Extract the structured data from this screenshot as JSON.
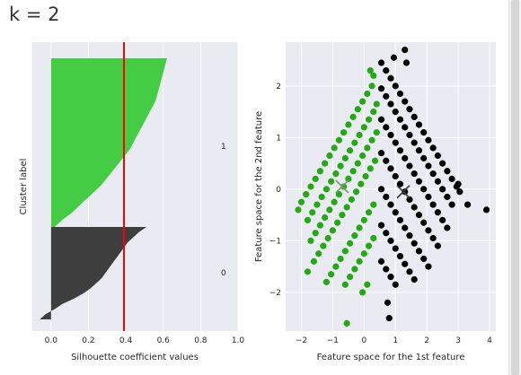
{
  "cell_output": {
    "heading": "k = 2"
  },
  "colors": {
    "panel_bg": "#eaeaf2",
    "cluster_0": "#3e3e3e",
    "cluster_1": "#44cc44",
    "scatter_0": "#000000",
    "scatter_1": "#22aa11",
    "avg_line": "#ff0000",
    "grid": "#ffffff"
  },
  "chart_data": [
    {
      "type": "area",
      "xlabel": "Silhouette coefficient values",
      "ylabel": "Cluster label",
      "xlim": [
        -0.1,
        1.0
      ],
      "xticks": [
        0.0,
        0.2,
        0.4,
        0.6,
        0.8,
        1.0
      ],
      "xtick_labels": [
        "0.0",
        "0.2",
        "0.4",
        "0.6",
        "0.8",
        "1.0"
      ],
      "average_silhouette": 0.39,
      "grid": true,
      "clusters": [
        {
          "label": "0",
          "color": "#3e3e3e",
          "silhouette_profile": [
            0.51,
            0.47,
            0.44,
            0.41,
            0.39,
            0.37,
            0.35,
            0.33,
            0.31,
            0.29,
            0.27,
            0.24,
            0.21,
            0.17,
            0.12,
            0.06,
            0.02,
            -0.03,
            -0.06
          ]
        },
        {
          "label": "1",
          "color": "#44cc44",
          "silhouette_profile": [
            0.62,
            0.61,
            0.6,
            0.59,
            0.58,
            0.57,
            0.56,
            0.54,
            0.52,
            0.5,
            0.48,
            0.46,
            0.44,
            0.42,
            0.39,
            0.36,
            0.33,
            0.3,
            0.27,
            0.23,
            0.19,
            0.15,
            0.11,
            0.06,
            0.02
          ]
        }
      ]
    },
    {
      "type": "scatter",
      "xlabel": "Feature space for the 1st feature",
      "ylabel": "Feature space for the 2nd feature",
      "xlim": [
        -2.5,
        4.2
      ],
      "ylim": [
        -2.75,
        2.85
      ],
      "xticks": [
        -2,
        -1,
        0,
        1,
        2,
        3,
        4
      ],
      "xtick_labels": [
        "−2",
        "−1",
        "0",
        "1",
        "2",
        "3",
        "4"
      ],
      "yticks": [
        -2,
        -1,
        0,
        1,
        2
      ],
      "ytick_labels": [
        "−2",
        "−1",
        "0",
        "1",
        "2"
      ],
      "grid": true,
      "centers": [
        {
          "x": -0.7,
          "y": 0.05
        },
        {
          "x": 1.25,
          "y": -0.05
        }
      ],
      "series": [
        {
          "cluster": "1",
          "color": "#22aa11",
          "points": [
            [
              -2.1,
              -0.4
            ],
            [
              -2.0,
              -0.25
            ],
            [
              -1.85,
              -0.1
            ],
            [
              -1.7,
              0.05
            ],
            [
              -1.55,
              0.2
            ],
            [
              -1.4,
              0.35
            ],
            [
              -1.25,
              0.5
            ],
            [
              -1.1,
              0.65
            ],
            [
              -0.95,
              0.8
            ],
            [
              -0.8,
              0.95
            ],
            [
              -0.65,
              1.1
            ],
            [
              -0.5,
              1.25
            ],
            [
              -0.35,
              1.4
            ],
            [
              -0.2,
              1.55
            ],
            [
              -0.05,
              1.7
            ],
            [
              0.1,
              1.85
            ],
            [
              0.25,
              2.0
            ],
            [
              -1.8,
              -0.6
            ],
            [
              -1.65,
              -0.45
            ],
            [
              -1.5,
              -0.3
            ],
            [
              -1.35,
              -0.15
            ],
            [
              -1.2,
              0.0
            ],
            [
              -1.05,
              0.15
            ],
            [
              -0.9,
              0.3
            ],
            [
              -0.75,
              0.45
            ],
            [
              -0.6,
              0.6
            ],
            [
              -0.45,
              0.75
            ],
            [
              -0.3,
              0.9
            ],
            [
              -0.15,
              1.05
            ],
            [
              0.0,
              1.2
            ],
            [
              0.15,
              1.35
            ],
            [
              0.3,
              1.5
            ],
            [
              0.4,
              1.65
            ],
            [
              -1.7,
              -1.0
            ],
            [
              -1.55,
              -0.85
            ],
            [
              -1.4,
              -0.7
            ],
            [
              -1.25,
              -0.55
            ],
            [
              -1.1,
              -0.4
            ],
            [
              -0.95,
              -0.25
            ],
            [
              -0.8,
              -0.1
            ],
            [
              -0.65,
              0.05
            ],
            [
              -0.5,
              0.2
            ],
            [
              -0.35,
              0.35
            ],
            [
              -0.2,
              0.5
            ],
            [
              -0.05,
              0.65
            ],
            [
              0.1,
              0.8
            ],
            [
              0.25,
              0.95
            ],
            [
              0.4,
              1.1
            ],
            [
              -1.8,
              -1.6
            ],
            [
              -1.6,
              -1.4
            ],
            [
              -1.45,
              -1.25
            ],
            [
              -1.3,
              -1.1
            ],
            [
              -1.15,
              -0.95
            ],
            [
              -1.0,
              -0.8
            ],
            [
              -0.85,
              -0.65
            ],
            [
              -0.7,
              -0.5
            ],
            [
              -0.55,
              -0.35
            ],
            [
              -0.4,
              -0.2
            ],
            [
              -0.25,
              -0.05
            ],
            [
              -0.1,
              0.1
            ],
            [
              0.05,
              0.25
            ],
            [
              0.2,
              0.4
            ],
            [
              0.35,
              0.55
            ],
            [
              -1.2,
              -1.8
            ],
            [
              -1.05,
              -1.65
            ],
            [
              -0.9,
              -1.5
            ],
            [
              -0.75,
              -1.35
            ],
            [
              -0.6,
              -1.2
            ],
            [
              -0.45,
              -1.05
            ],
            [
              -0.3,
              -0.9
            ],
            [
              -0.15,
              -0.75
            ],
            [
              0.0,
              -0.6
            ],
            [
              0.15,
              -0.45
            ],
            [
              0.3,
              -0.3
            ],
            [
              -0.6,
              -1.85
            ],
            [
              -0.45,
              -1.7
            ],
            [
              -0.3,
              -1.55
            ],
            [
              -0.15,
              -1.4
            ],
            [
              0.0,
              -1.25
            ],
            [
              0.15,
              -1.1
            ],
            [
              0.3,
              -0.95
            ],
            [
              -0.05,
              -2.0
            ],
            [
              0.1,
              -1.85
            ],
            [
              -0.55,
              -2.6
            ],
            [
              0.3,
              2.2
            ],
            [
              0.2,
              2.3
            ]
          ]
        },
        {
          "cluster": "0",
          "color": "#000000",
          "points": [
            [
              0.55,
              2.45
            ],
            [
              0.7,
              2.3
            ],
            [
              0.85,
              2.15
            ],
            [
              1.0,
              2.0
            ],
            [
              1.15,
              1.85
            ],
            [
              1.3,
              1.7
            ],
            [
              1.45,
              1.55
            ],
            [
              1.6,
              1.4
            ],
            [
              1.75,
              1.25
            ],
            [
              1.9,
              1.1
            ],
            [
              2.05,
              0.95
            ],
            [
              2.2,
              0.8
            ],
            [
              2.35,
              0.65
            ],
            [
              2.5,
              0.5
            ],
            [
              2.65,
              0.35
            ],
            [
              2.8,
              0.2
            ],
            [
              2.95,
              0.05
            ],
            [
              0.55,
              1.95
            ],
            [
              0.7,
              1.8
            ],
            [
              0.85,
              1.65
            ],
            [
              1.0,
              1.5
            ],
            [
              1.15,
              1.35
            ],
            [
              1.3,
              1.2
            ],
            [
              1.45,
              1.05
            ],
            [
              1.6,
              0.9
            ],
            [
              1.75,
              0.75
            ],
            [
              1.9,
              0.6
            ],
            [
              2.05,
              0.45
            ],
            [
              2.2,
              0.3
            ],
            [
              2.35,
              0.15
            ],
            [
              2.5,
              0.0
            ],
            [
              2.65,
              -0.15
            ],
            [
              2.8,
              -0.3
            ],
            [
              0.55,
              1.35
            ],
            [
              0.7,
              1.2
            ],
            [
              0.85,
              1.05
            ],
            [
              1.0,
              0.9
            ],
            [
              1.15,
              0.75
            ],
            [
              1.3,
              0.6
            ],
            [
              1.45,
              0.45
            ],
            [
              1.6,
              0.3
            ],
            [
              1.75,
              0.15
            ],
            [
              1.9,
              0.0
            ],
            [
              2.05,
              -0.15
            ],
            [
              2.2,
              -0.3
            ],
            [
              2.35,
              -0.45
            ],
            [
              2.5,
              -0.6
            ],
            [
              2.65,
              -0.75
            ],
            [
              0.55,
              0.7
            ],
            [
              0.7,
              0.55
            ],
            [
              0.85,
              0.4
            ],
            [
              1.0,
              0.25
            ],
            [
              1.15,
              0.1
            ],
            [
              1.3,
              -0.05
            ],
            [
              1.45,
              -0.2
            ],
            [
              1.6,
              -0.35
            ],
            [
              1.75,
              -0.5
            ],
            [
              1.9,
              -0.65
            ],
            [
              2.05,
              -0.8
            ],
            [
              2.2,
              -0.95
            ],
            [
              2.35,
              -1.1
            ],
            [
              0.55,
              0.0
            ],
            [
              0.7,
              -0.15
            ],
            [
              0.85,
              -0.3
            ],
            [
              1.0,
              -0.45
            ],
            [
              1.15,
              -0.6
            ],
            [
              1.3,
              -0.75
            ],
            [
              1.45,
              -0.9
            ],
            [
              1.6,
              -1.05
            ],
            [
              1.75,
              -1.2
            ],
            [
              1.9,
              -1.35
            ],
            [
              2.05,
              -1.5
            ],
            [
              0.55,
              -0.7
            ],
            [
              0.7,
              -0.85
            ],
            [
              0.85,
              -1.0
            ],
            [
              1.0,
              -1.15
            ],
            [
              1.15,
              -1.3
            ],
            [
              1.3,
              -1.45
            ],
            [
              1.45,
              -1.6
            ],
            [
              1.6,
              -1.75
            ],
            [
              0.55,
              -1.4
            ],
            [
              0.7,
              -1.55
            ],
            [
              0.85,
              -1.7
            ],
            [
              1.0,
              -1.85
            ],
            [
              0.75,
              -2.2
            ],
            [
              0.8,
              -2.5
            ],
            [
              0.95,
              2.55
            ],
            [
              1.35,
              2.45
            ],
            [
              1.3,
              2.7
            ],
            [
              3.3,
              -0.3
            ],
            [
              3.9,
              -0.4
            ],
            [
              3.0,
              0.1
            ],
            [
              3.05,
              -0.05
            ]
          ]
        }
      ],
      "cluster_labels": [
        "1",
        "0"
      ]
    }
  ]
}
